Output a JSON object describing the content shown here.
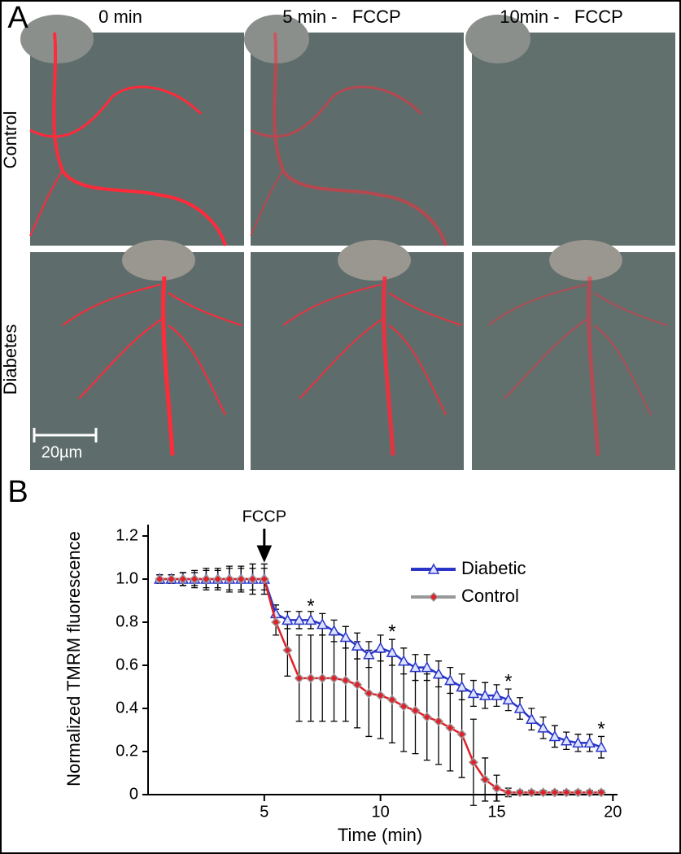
{
  "panel_a": {
    "panel_label": "A",
    "columns": [
      "0 min",
      "5 min -   FCCP",
      "10min -   FCCP"
    ],
    "rows": [
      "Control",
      "Diabetes"
    ],
    "scale_bar": "20µm"
  },
  "chart_data": {
    "type": "line",
    "panel_label": "B",
    "x_label": "Time (min)",
    "y_label": "Normalized TMRM fluorescence",
    "x": [
      0.5,
      1,
      1.5,
      2,
      2.5,
      3,
      3.5,
      4,
      4.5,
      5,
      5.5,
      6,
      6.5,
      7,
      7.5,
      8,
      8.5,
      9,
      9.5,
      10,
      10.5,
      11,
      11.5,
      12,
      12.5,
      13,
      13.5,
      14,
      14.5,
      15,
      15.5,
      16,
      16.5,
      17,
      17.5,
      18,
      18.5,
      19,
      19.5
    ],
    "series": [
      {
        "name": "Diabetic",
        "color": "#2a35c8",
        "marker": "triangle",
        "values": [
          1,
          1,
          1,
          1,
          1,
          1,
          1,
          1,
          1,
          1,
          0.84,
          0.81,
          0.81,
          0.81,
          0.79,
          0.76,
          0.73,
          0.69,
          0.65,
          0.68,
          0.66,
          0.62,
          0.59,
          0.59,
          0.56,
          0.53,
          0.5,
          0.47,
          0.46,
          0.46,
          0.44,
          0.4,
          0.35,
          0.31,
          0.27,
          0.25,
          0.24,
          0.24,
          0.22
        ],
        "errors": [
          0.02,
          0.02,
          0.03,
          0.03,
          0.04,
          0.04,
          0.05,
          0.05,
          0.05,
          0.05,
          0.04,
          0.04,
          0.04,
          0.04,
          0.05,
          0.05,
          0.05,
          0.06,
          0.06,
          0.06,
          0.06,
          0.06,
          0.06,
          0.06,
          0.06,
          0.06,
          0.06,
          0.06,
          0.06,
          0.05,
          0.05,
          0.05,
          0.05,
          0.05,
          0.05,
          0.04,
          0.04,
          0.04,
          0.05
        ]
      },
      {
        "name": "Control",
        "color": "#e0202a",
        "marker": "diamond",
        "values": [
          1,
          1,
          1,
          1,
          1,
          1,
          1,
          1,
          1,
          1,
          0.8,
          0.67,
          0.54,
          0.54,
          0.54,
          0.54,
          0.53,
          0.51,
          0.47,
          0.46,
          0.44,
          0.41,
          0.39,
          0.36,
          0.34,
          0.31,
          0.28,
          0.15,
          0.07,
          0.03,
          0.01,
          0.01,
          0.01,
          0.01,
          0.01,
          0.01,
          0.01,
          0.01,
          0.01
        ],
        "errors": [
          0.02,
          0.02,
          0.03,
          0.04,
          0.05,
          0.05,
          0.06,
          0.06,
          0.07,
          0.07,
          0.06,
          0.12,
          0.2,
          0.2,
          0.2,
          0.2,
          0.19,
          0.2,
          0.2,
          0.2,
          0.2,
          0.21,
          0.2,
          0.2,
          0.2,
          0.2,
          0.2,
          0.2,
          0.1,
          0.06,
          0.02,
          0.01,
          0.01,
          0.01,
          0.01,
          0.01,
          0.01,
          0.01,
          0.01
        ]
      }
    ],
    "xlim": [
      0,
      20.2
    ],
    "xticks": [
      5,
      10,
      15,
      20
    ],
    "ylim": [
      0,
      1.2
    ],
    "yticks": [
      0,
      0.2,
      0.4,
      0.6,
      {
        "value": 1,
        "label": "1.0"
      },
      0.8,
      1.2
    ],
    "legend": "upper right",
    "arrow": {
      "text": "FCCP",
      "x": 5
    },
    "annotations": [
      {
        "text": "*",
        "x": 7,
        "y": 0.87
      },
      {
        "text": "*",
        "x": 10.5,
        "y": 0.75
      },
      {
        "text": "*",
        "x": 15.5,
        "y": 0.52
      },
      {
        "text": "*",
        "x": 19.5,
        "y": 0.3
      }
    ]
  }
}
